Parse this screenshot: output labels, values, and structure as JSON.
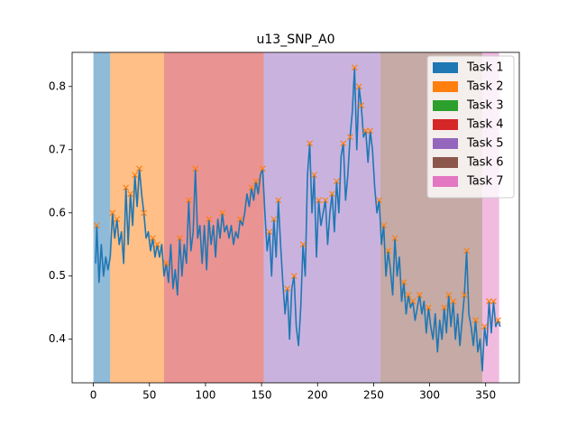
{
  "chart_data": {
    "type": "line",
    "title": "u13_SNP_A0",
    "xlim": [
      -19,
      380
    ],
    "ylim": [
      0.331,
      0.854
    ],
    "xticks": [
      0,
      50,
      100,
      150,
      200,
      250,
      300,
      350
    ],
    "yticks": [
      0.4,
      0.5,
      0.6,
      0.7,
      0.8
    ],
    "color": "#1f77b4",
    "legend": "upper right",
    "regions": [
      {
        "name": "Task 1",
        "color": "#1f77b4",
        "start": 0,
        "end": 15
      },
      {
        "name": "Task 2",
        "color": "#ff7f0e",
        "start": 15,
        "end": 63
      },
      {
        "name": "Task 3",
        "color": "#2ca02c"
      },
      {
        "name": "Task 4",
        "color": "#d62728",
        "start": 63,
        "end": 152
      },
      {
        "name": "Task 5",
        "color": "#9467bd",
        "start": 152,
        "end": 256
      },
      {
        "name": "Task 6",
        "color": "#8c564b",
        "start": 256,
        "end": 347
      },
      {
        "name": "Task 7",
        "color": "#e377c2",
        "start": 347,
        "end": 362
      }
    ],
    "x": [
      2,
      3,
      5,
      7,
      9,
      11,
      13,
      15,
      17,
      19,
      21,
      23,
      25,
      27,
      29,
      31,
      33,
      35,
      37,
      39,
      41,
      43,
      45,
      47,
      49,
      51,
      53,
      55,
      57,
      59,
      61,
      63,
      65,
      67,
      69,
      71,
      73,
      75,
      77,
      79,
      81,
      83,
      85,
      87,
      89,
      91,
      93,
      95,
      97,
      99,
      101,
      103,
      105,
      107,
      109,
      111,
      113,
      115,
      117,
      119,
      121,
      123,
      125,
      127,
      129,
      131,
      133,
      135,
      137,
      139,
      141,
      143,
      145,
      147,
      149,
      151,
      153,
      155,
      157,
      159,
      161,
      163,
      165,
      167,
      169,
      171,
      173,
      175,
      177,
      179,
      181,
      183,
      185,
      187,
      189,
      191,
      193,
      195,
      197,
      199,
      201,
      203,
      205,
      207,
      209,
      211,
      213,
      215,
      217,
      219,
      221,
      223,
      225,
      227,
      229,
      231,
      233,
      235,
      237,
      239,
      241,
      243,
      245,
      247,
      249,
      251,
      253,
      255,
      257,
      259,
      261,
      263,
      265,
      267,
      269,
      271,
      273,
      275,
      277,
      279,
      281,
      283,
      285,
      287,
      289,
      291,
      293,
      295,
      297,
      299,
      301,
      303,
      305,
      307,
      309,
      311,
      313,
      315,
      317,
      319,
      321,
      323,
      325,
      327,
      329,
      331,
      333,
      335,
      337,
      339,
      341,
      343,
      345,
      347,
      349,
      351,
      353,
      355,
      357,
      359,
      361,
      363
    ],
    "values": [
      0.52,
      0.58,
      0.49,
      0.55,
      0.5,
      0.53,
      0.51,
      0.53,
      0.6,
      0.56,
      0.59,
      0.55,
      0.57,
      0.52,
      0.64,
      0.55,
      0.63,
      0.58,
      0.66,
      0.61,
      0.67,
      0.63,
      0.6,
      0.56,
      0.57,
      0.54,
      0.56,
      0.53,
      0.55,
      0.53,
      0.55,
      0.5,
      0.52,
      0.49,
      0.55,
      0.48,
      0.51,
      0.47,
      0.56,
      0.5,
      0.55,
      0.52,
      0.62,
      0.54,
      0.57,
      0.67,
      0.56,
      0.58,
      0.52,
      0.58,
      0.51,
      0.59,
      0.55,
      0.58,
      0.53,
      0.59,
      0.56,
      0.6,
      0.57,
      0.58,
      0.56,
      0.58,
      0.55,
      0.57,
      0.56,
      0.59,
      0.58,
      0.6,
      0.63,
      0.61,
      0.64,
      0.62,
      0.65,
      0.63,
      0.66,
      0.67,
      0.6,
      0.54,
      0.57,
      0.5,
      0.59,
      0.53,
      0.62,
      0.55,
      0.49,
      0.44,
      0.48,
      0.4,
      0.48,
      0.5,
      0.42,
      0.39,
      0.45,
      0.55,
      0.5,
      0.66,
      0.71,
      0.6,
      0.66,
      0.53,
      0.62,
      0.58,
      0.6,
      0.62,
      0.55,
      0.6,
      0.63,
      0.57,
      0.65,
      0.6,
      0.69,
      0.71,
      0.62,
      0.66,
      0.72,
      0.76,
      0.83,
      0.7,
      0.8,
      0.77,
      0.72,
      0.73,
      0.68,
      0.73,
      0.7,
      0.64,
      0.6,
      0.62,
      0.55,
      0.58,
      0.5,
      0.54,
      0.51,
      0.47,
      0.56,
      0.5,
      0.53,
      0.46,
      0.49,
      0.44,
      0.47,
      0.45,
      0.46,
      0.43,
      0.45,
      0.47,
      0.44,
      0.46,
      0.41,
      0.45,
      0.42,
      0.4,
      0.44,
      0.38,
      0.43,
      0.4,
      0.45,
      0.41,
      0.47,
      0.42,
      0.46,
      0.4,
      0.44,
      0.39,
      0.43,
      0.47,
      0.54,
      0.44,
      0.42,
      0.39,
      0.43,
      0.38,
      0.4,
      0.35,
      0.42,
      0.39,
      0.46,
      0.41,
      0.46,
      0.42,
      0.43,
      0.42
    ],
    "peaks": {
      "color": "#ff7f0e",
      "x": [
        3,
        17,
        21,
        29,
        33,
        37,
        41,
        45,
        53,
        57,
        65,
        77,
        85,
        91,
        103,
        115,
        131,
        141,
        145,
        151,
        157,
        161,
        165,
        173,
        179,
        187,
        193,
        197,
        201,
        207,
        213,
        217,
        223,
        229,
        233,
        237,
        239,
        243,
        247,
        255,
        259,
        263,
        269,
        277,
        281,
        285,
        291,
        299,
        313,
        317,
        321,
        331,
        333,
        341,
        349,
        353,
        357,
        361
      ],
      "values": [
        0.58,
        0.6,
        0.59,
        0.64,
        0.63,
        0.66,
        0.67,
        0.6,
        0.56,
        0.55,
        0.52,
        0.56,
        0.62,
        0.67,
        0.59,
        0.6,
        0.59,
        0.64,
        0.65,
        0.67,
        0.57,
        0.59,
        0.62,
        0.48,
        0.5,
        0.55,
        0.71,
        0.66,
        0.62,
        0.62,
        0.63,
        0.65,
        0.71,
        0.72,
        0.83,
        0.8,
        0.77,
        0.73,
        0.73,
        0.62,
        0.58,
        0.54,
        0.56,
        0.49,
        0.47,
        0.46,
        0.47,
        0.45,
        0.45,
        0.47,
        0.46,
        0.47,
        0.54,
        0.43,
        0.42,
        0.46,
        0.46,
        0.43
      ]
    }
  }
}
